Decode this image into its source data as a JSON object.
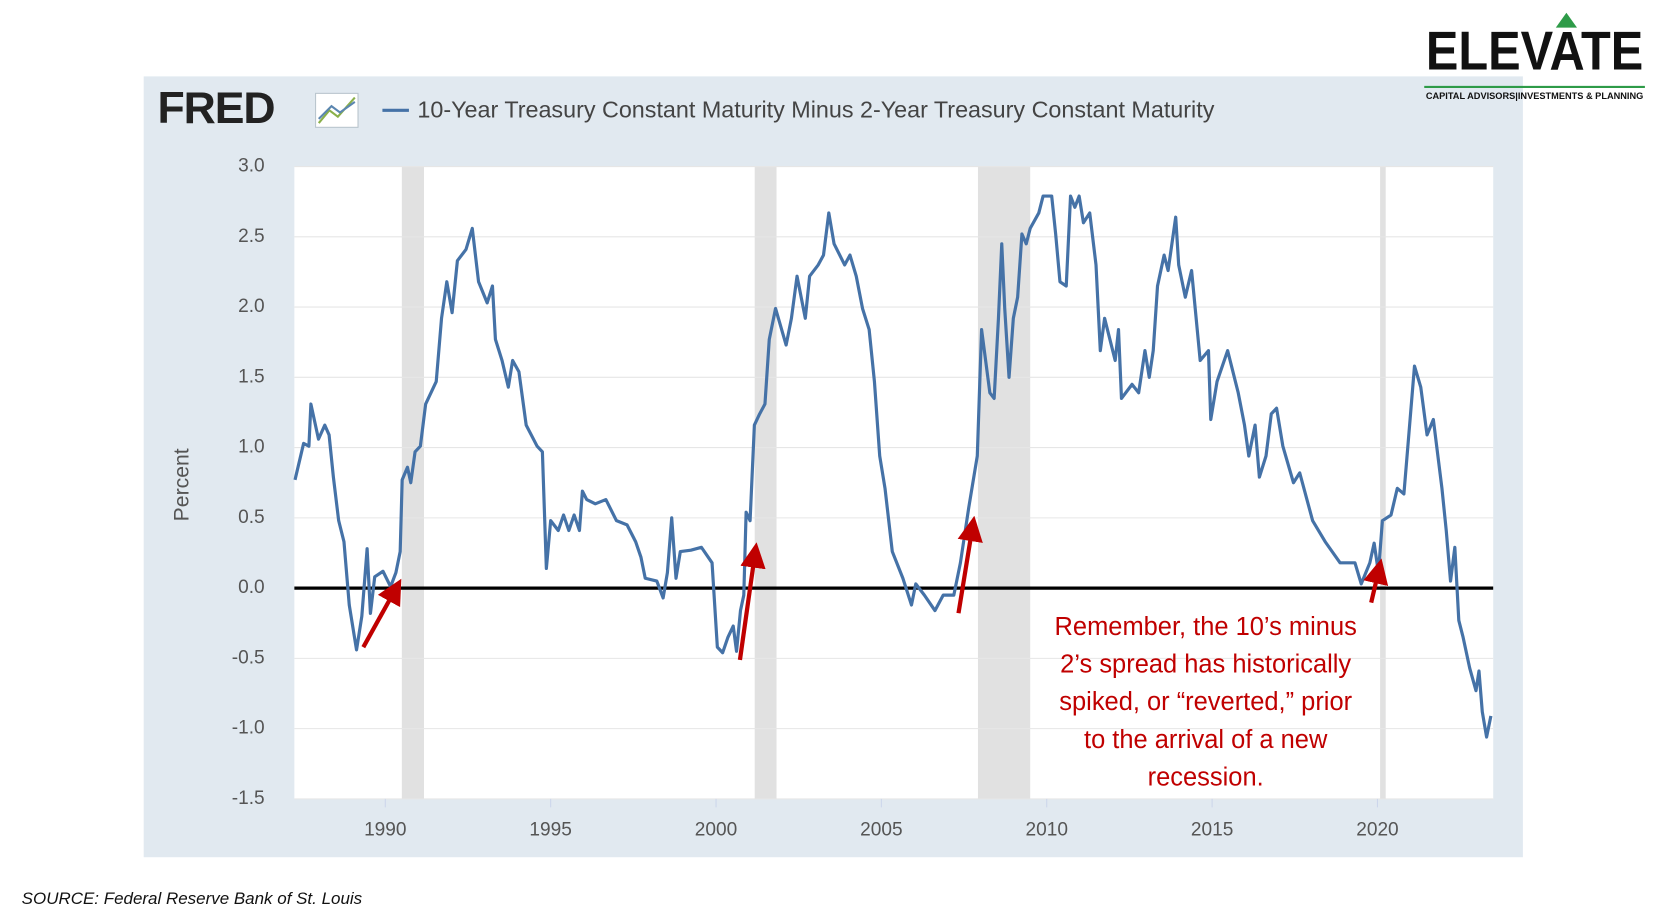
{
  "logo": {
    "name": "ELEVATE",
    "tagline": "CAPITAL ADVISORS|INVESTMENTS & PLANNING"
  },
  "source": "SOURCE: Federal Reserve Bank of St. Louis",
  "chart_data": {
    "type": "line",
    "brand": "FRED",
    "y_label": "Percent",
    "grid": true,
    "zero_line": true,
    "recession_color": "#e1e1e1",
    "xlim": [
      1987.25,
      2023.5
    ],
    "xticks": [
      1990,
      1995,
      2000,
      2005,
      2010,
      2015,
      2020
    ],
    "ylim": [
      -1.5,
      3.0
    ],
    "yticks": [
      -1.5,
      {
        "value": -1.0,
        "label": "-1.0"
      },
      -0.5,
      {
        "value": 0,
        "label": "0.0"
      },
      0.5,
      {
        "value": 1.0,
        "label": "1.0"
      },
      1.5,
      {
        "value": 2.0,
        "label": "2.0"
      },
      2.5,
      {
        "value": 3.0,
        "label": "3.0"
      }
    ],
    "recessions": [
      [
        1990.5,
        1991.17
      ],
      [
        2001.17,
        2001.83
      ],
      [
        2007.92,
        2009.5
      ],
      [
        2020.08,
        2020.25
      ]
    ],
    "annotation": [
      "Remember, the 10’s minus",
      "2’s spread has historically",
      "spiked, or “reverted,” prior",
      "to the arrival of a new",
      "recession."
    ],
    "annotation_color": "#c00000",
    "x": [
      1987.27,
      1987.53,
      1987.69,
      1987.75,
      1987.98,
      1988.17,
      1988.3,
      1988.43,
      1988.59,
      1988.75,
      1988.91,
      1989.13,
      1989.29,
      1989.45,
      1989.55,
      1989.68,
      1989.93,
      1990.16,
      1990.32,
      1990.45,
      1990.51,
      1990.67,
      1990.77,
      1990.9,
      1991.06,
      1991.22,
      1991.54,
      1991.7,
      1991.86,
      1992.02,
      1992.18,
      1992.44,
      1992.63,
      1992.82,
      1993.08,
      1993.24,
      1993.33,
      1993.53,
      1993.72,
      1993.85,
      1994.04,
      1994.26,
      1994.59,
      1994.75,
      1994.87,
      1995.0,
      1995.23,
      1995.39,
      1995.55,
      1995.71,
      1995.87,
      1995.96,
      1996.09,
      1996.35,
      1996.67,
      1996.99,
      1997.31,
      1997.57,
      1997.73,
      1997.86,
      1998.21,
      1998.4,
      1998.53,
      1998.66,
      1998.79,
      1998.92,
      1999.24,
      1999.56,
      1999.88,
      2000.04,
      2000.2,
      2000.36,
      2000.52,
      2000.62,
      2000.74,
      2000.84,
      2000.91,
      2001.03,
      2001.16,
      2001.32,
      2001.48,
      2001.61,
      2001.8,
      2002.12,
      2002.28,
      2002.45,
      2002.7,
      2002.83,
      2003.09,
      2003.25,
      2003.41,
      2003.57,
      2003.89,
      2004.05,
      2004.24,
      2004.43,
      2004.63,
      2004.79,
      2004.95,
      2005.11,
      2005.33,
      2005.65,
      2005.91,
      2006.04,
      2006.3,
      2006.62,
      2006.87,
      2007.19,
      2007.39,
      2007.64,
      2007.9,
      2008.03,
      2008.28,
      2008.41,
      2008.54,
      2008.64,
      2008.73,
      2008.86,
      2008.99,
      2009.12,
      2009.25,
      2009.38,
      2009.5,
      2009.76,
      2009.89,
      2010.15,
      2010.27,
      2010.4,
      2010.59,
      2010.72,
      2010.85,
      2010.98,
      2011.11,
      2011.3,
      2011.49,
      2011.62,
      2011.75,
      2012.07,
      2012.17,
      2012.26,
      2012.58,
      2012.78,
      2012.97,
      2013.1,
      2013.22,
      2013.35,
      2013.55,
      2013.67,
      2013.9,
      2013.99,
      2014.19,
      2014.38,
      2014.64,
      2014.89,
      2014.96,
      2015.15,
      2015.47,
      2015.79,
      2015.98,
      2016.11,
      2016.3,
      2016.43,
      2016.63,
      2016.79,
      2016.95,
      2017.14,
      2017.46,
      2017.65,
      2018.04,
      2018.42,
      2018.87,
      2019.32,
      2019.51,
      2019.77,
      2019.9,
      2020.03,
      2020.15,
      2020.41,
      2020.6,
      2020.8,
      2020.92,
      2021.12,
      2021.31,
      2021.5,
      2021.69,
      2021.95,
      2022.08,
      2022.21,
      2022.34,
      2022.46,
      2022.59,
      2022.79,
      2022.98,
      2023.07,
      2023.17,
      2023.3,
      2023.43
    ],
    "series": [
      {
        "name": "10-Year Treasury Constant Maturity Minus 2-Year Treasury Constant Maturity",
        "color": "#4572a7",
        "values": [
          0.77,
          1.03,
          1.01,
          1.31,
          1.06,
          1.16,
          1.09,
          0.79,
          0.48,
          0.33,
          -0.12,
          -0.44,
          -0.2,
          0.28,
          -0.18,
          0.08,
          0.12,
          0.01,
          0.11,
          0.26,
          0.77,
          0.86,
          0.75,
          0.97,
          1.01,
          1.31,
          1.47,
          1.92,
          2.18,
          1.96,
          2.33,
          2.41,
          2.56,
          2.18,
          2.03,
          2.15,
          1.77,
          1.62,
          1.43,
          1.62,
          1.54,
          1.16,
          1.01,
          0.97,
          0.14,
          0.48,
          0.41,
          0.52,
          0.41,
          0.52,
          0.41,
          0.69,
          0.63,
          0.6,
          0.63,
          0.48,
          0.45,
          0.33,
          0.22,
          0.07,
          0.05,
          -0.07,
          0.11,
          0.5,
          0.07,
          0.26,
          0.27,
          0.29,
          0.18,
          -0.42,
          -0.46,
          -0.35,
          -0.27,
          -0.45,
          -0.16,
          -0.05,
          0.54,
          0.48,
          1.16,
          1.24,
          1.31,
          1.77,
          1.99,
          1.73,
          1.92,
          2.22,
          1.92,
          2.22,
          2.3,
          2.37,
          2.67,
          2.45,
          2.3,
          2.37,
          2.22,
          1.99,
          1.84,
          1.47,
          0.94,
          0.71,
          0.26,
          0.07,
          -0.12,
          0.03,
          -0.05,
          -0.16,
          -0.05,
          -0.05,
          0.18,
          0.57,
          0.94,
          1.84,
          1.39,
          1.35,
          1.92,
          2.45,
          1.99,
          1.5,
          1.92,
          2.07,
          2.52,
          2.45,
          2.56,
          2.67,
          2.79,
          2.79,
          2.52,
          2.18,
          2.15,
          2.79,
          2.71,
          2.79,
          2.6,
          2.67,
          2.3,
          1.69,
          1.92,
          1.62,
          1.84,
          1.35,
          1.45,
          1.39,
          1.69,
          1.5,
          1.69,
          2.15,
          2.37,
          2.26,
          2.64,
          2.3,
          2.07,
          2.26,
          1.62,
          1.69,
          1.2,
          1.47,
          1.69,
          1.39,
          1.16,
          0.94,
          1.16,
          0.79,
          0.94,
          1.24,
          1.28,
          1.01,
          0.75,
          0.82,
          0.48,
          0.33,
          0.18,
          0.18,
          0.03,
          0.18,
          0.32,
          0.11,
          0.48,
          0.52,
          0.71,
          0.67,
          1.01,
          1.58,
          1.43,
          1.09,
          1.2,
          0.71,
          0.41,
          0.05,
          0.29,
          -0.23,
          -0.35,
          -0.57,
          -0.73,
          -0.59,
          -0.88,
          -1.06,
          -0.91
        ]
      }
    ]
  }
}
